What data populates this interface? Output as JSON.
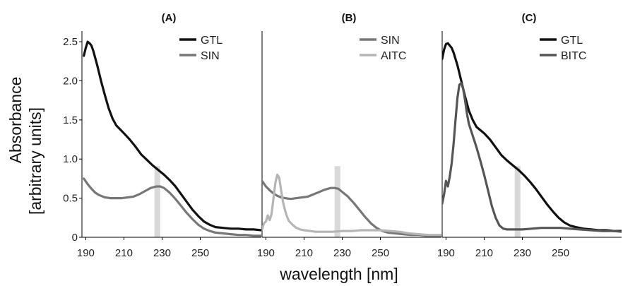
{
  "figure": {
    "ylabel_line1": "Absorbance",
    "ylabel_line2": "[arbitrary units]",
    "xlabel": "wavelength [nm]",
    "highlight_color": "#d9d9d9"
  },
  "chart_data": [
    {
      "type": "line",
      "title": "(A)",
      "xlabel": "",
      "ylabel": "",
      "xlim": [
        188,
        282
      ],
      "ylim": [
        0,
        2.6
      ],
      "xticks": [
        "190",
        "210",
        "230",
        "250"
      ],
      "yticks": [
        "0",
        "0.5",
        "1.0",
        "1.5",
        "2.0",
        "2.5"
      ],
      "highlight_x": [
        226,
        229
      ],
      "legend_position": "top-right",
      "series": [
        {
          "name": "GTL",
          "color": "#111111",
          "x": [
            189,
            190,
            191,
            192,
            193,
            194,
            196,
            198,
            200,
            202,
            204,
            206,
            208,
            210,
            213,
            216,
            219,
            222,
            225,
            228,
            231,
            234,
            237,
            240,
            243,
            246,
            249,
            252,
            255,
            258,
            262,
            266,
            270,
            274,
            278,
            282
          ],
          "y": [
            2.32,
            2.42,
            2.5,
            2.48,
            2.45,
            2.38,
            2.2,
            2.0,
            1.82,
            1.65,
            1.52,
            1.43,
            1.38,
            1.33,
            1.25,
            1.16,
            1.06,
            0.99,
            0.92,
            0.86,
            0.8,
            0.73,
            0.65,
            0.55,
            0.45,
            0.35,
            0.27,
            0.2,
            0.16,
            0.13,
            0.12,
            0.11,
            0.11,
            0.1,
            0.1,
            0.09
          ]
        },
        {
          "name": "SIN",
          "color": "#777777",
          "x": [
            189,
            191,
            193,
            195,
            197,
            200,
            203,
            206,
            209,
            212,
            215,
            218,
            221,
            224,
            227,
            229,
            231,
            234,
            237,
            240,
            243,
            246,
            249,
            252,
            255,
            258,
            262,
            266,
            270,
            274,
            278,
            282
          ],
          "y": [
            0.75,
            0.68,
            0.62,
            0.57,
            0.54,
            0.51,
            0.5,
            0.5,
            0.5,
            0.51,
            0.52,
            0.55,
            0.59,
            0.63,
            0.65,
            0.65,
            0.63,
            0.57,
            0.49,
            0.4,
            0.31,
            0.23,
            0.16,
            0.11,
            0.08,
            0.06,
            0.05,
            0.04,
            0.03,
            0.03,
            0.02,
            0.02
          ]
        }
      ]
    },
    {
      "type": "line",
      "title": "(B)",
      "xlabel": "",
      "ylabel": "",
      "xlim": [
        188,
        282
      ],
      "ylim": [
        0,
        2.6
      ],
      "xticks": [
        "190",
        "210",
        "230",
        "250"
      ],
      "yticks": [],
      "highlight_x": [
        226,
        229
      ],
      "legend_position": "top-right",
      "series": [
        {
          "name": "SIN",
          "color": "#777777",
          "x": [
            188,
            190,
            192,
            194,
            196,
            198,
            200,
            203,
            206,
            209,
            212,
            215,
            218,
            221,
            224,
            226,
            228,
            230,
            233,
            236,
            239,
            242,
            245,
            248,
            251,
            254,
            258,
            262,
            266,
            270,
            274,
            278,
            282
          ],
          "y": [
            0.72,
            0.65,
            0.6,
            0.56,
            0.53,
            0.51,
            0.5,
            0.49,
            0.5,
            0.51,
            0.52,
            0.55,
            0.58,
            0.61,
            0.63,
            0.63,
            0.62,
            0.58,
            0.52,
            0.44,
            0.35,
            0.26,
            0.18,
            0.12,
            0.08,
            0.06,
            0.05,
            0.04,
            0.03,
            0.03,
            0.02,
            0.02,
            0.02
          ]
        },
        {
          "name": "AITC",
          "color": "#b5b5b5",
          "x": [
            188,
            189,
            190,
            191,
            192,
            193,
            194,
            195,
            196,
            197,
            198,
            199,
            200,
            201,
            202,
            204,
            206,
            208,
            210,
            213,
            216,
            220,
            225,
            230,
            235,
            240,
            245,
            250,
            255,
            260,
            265,
            270,
            275,
            282
          ],
          "y": [
            0.1,
            0.18,
            0.2,
            0.28,
            0.22,
            0.3,
            0.5,
            0.7,
            0.8,
            0.76,
            0.6,
            0.45,
            0.35,
            0.27,
            0.21,
            0.16,
            0.12,
            0.1,
            0.09,
            0.08,
            0.07,
            0.07,
            0.07,
            0.08,
            0.08,
            0.09,
            0.09,
            0.09,
            0.08,
            0.07,
            0.05,
            0.04,
            0.03,
            0.03
          ]
        }
      ]
    },
    {
      "type": "line",
      "title": "(C)",
      "xlabel": "",
      "ylabel": "",
      "xlim": [
        188,
        282
      ],
      "ylim": [
        0,
        2.6
      ],
      "xticks": [
        "190",
        "210",
        "230",
        "250"
      ],
      "yticks": [],
      "highlight_x": [
        226,
        229
      ],
      "legend_position": "top-right",
      "series": [
        {
          "name": "GTL",
          "color": "#111111",
          "x": [
            188,
            189,
            190,
            191,
            192,
            193,
            194,
            196,
            198,
            200,
            202,
            204,
            206,
            208,
            210,
            213,
            216,
            219,
            222,
            225,
            228,
            231,
            234,
            237,
            240,
            243,
            246,
            249,
            252,
            255,
            258,
            262,
            266,
            270,
            274,
            278,
            282
          ],
          "y": [
            2.28,
            2.4,
            2.47,
            2.48,
            2.45,
            2.42,
            2.36,
            2.2,
            2.0,
            1.8,
            1.62,
            1.5,
            1.41,
            1.37,
            1.33,
            1.25,
            1.15,
            1.05,
            0.98,
            0.92,
            0.86,
            0.79,
            0.71,
            0.62,
            0.52,
            0.42,
            0.33,
            0.25,
            0.19,
            0.15,
            0.13,
            0.11,
            0.1,
            0.09,
            0.09,
            0.08,
            0.08
          ]
        },
        {
          "name": "BITC",
          "color": "#555555",
          "x": [
            188,
            189,
            190,
            191,
            192,
            193,
            194,
            195,
            196,
            197,
            198,
            199,
            200,
            201,
            202,
            204,
            206,
            208,
            210,
            212,
            214,
            216,
            218,
            220,
            222,
            224,
            226,
            228,
            230,
            235,
            240,
            245,
            250,
            255,
            260,
            266,
            272,
            278,
            282
          ],
          "y": [
            0.43,
            0.55,
            0.72,
            0.65,
            0.78,
            0.95,
            1.2,
            1.5,
            1.78,
            1.95,
            1.97,
            1.9,
            1.75,
            1.58,
            1.45,
            1.3,
            1.15,
            0.98,
            0.8,
            0.6,
            0.4,
            0.25,
            0.15,
            0.11,
            0.1,
            0.1,
            0.1,
            0.1,
            0.1,
            0.11,
            0.12,
            0.12,
            0.12,
            0.11,
            0.1,
            0.09,
            0.08,
            0.08,
            0.07
          ]
        }
      ]
    }
  ]
}
